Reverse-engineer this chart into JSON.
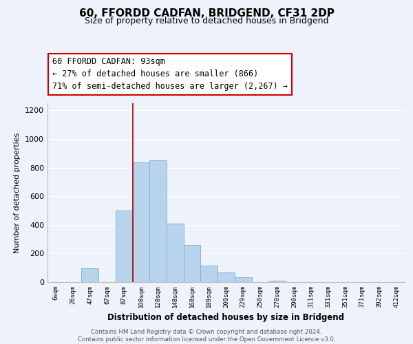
{
  "title": "60, FFORDD CADFAN, BRIDGEND, CF31 2DP",
  "subtitle": "Size of property relative to detached houses in Bridgend",
  "xlabel": "Distribution of detached houses by size in Bridgend",
  "ylabel": "Number of detached properties",
  "categories": [
    "6sqm",
    "26sqm",
    "47sqm",
    "67sqm",
    "87sqm",
    "108sqm",
    "128sqm",
    "148sqm",
    "168sqm",
    "189sqm",
    "209sqm",
    "229sqm",
    "250sqm",
    "270sqm",
    "290sqm",
    "311sqm",
    "331sqm",
    "351sqm",
    "371sqm",
    "392sqm",
    "412sqm"
  ],
  "values": [
    0,
    0,
    97,
    0,
    498,
    835,
    852,
    407,
    260,
    115,
    68,
    35,
    0,
    12,
    0,
    0,
    0,
    0,
    0,
    0,
    0
  ],
  "bar_color": "#b8d4ec",
  "bar_edge_color": "#7aaed4",
  "redline_index": 4,
  "annotation_line1": "60 FFORDD CADFAN: 93sqm",
  "annotation_line2": "← 27% of detached houses are smaller (866)",
  "annotation_line3": "71% of semi-detached houses are larger (2,267) →",
  "annotation_box_color": "#ffffff",
  "annotation_box_edge_color": "#cc0000",
  "footer_line1": "Contains HM Land Registry data © Crown copyright and database right 2024.",
  "footer_line2": "Contains public sector information licensed under the Open Government Licence v3.0.",
  "ylim": [
    0,
    1250
  ],
  "yticks": [
    0,
    200,
    400,
    600,
    800,
    1000,
    1200
  ],
  "background_color": "#eef2fb",
  "grid_color": "#ffffff",
  "title_fontsize": 11,
  "subtitle_fontsize": 9
}
